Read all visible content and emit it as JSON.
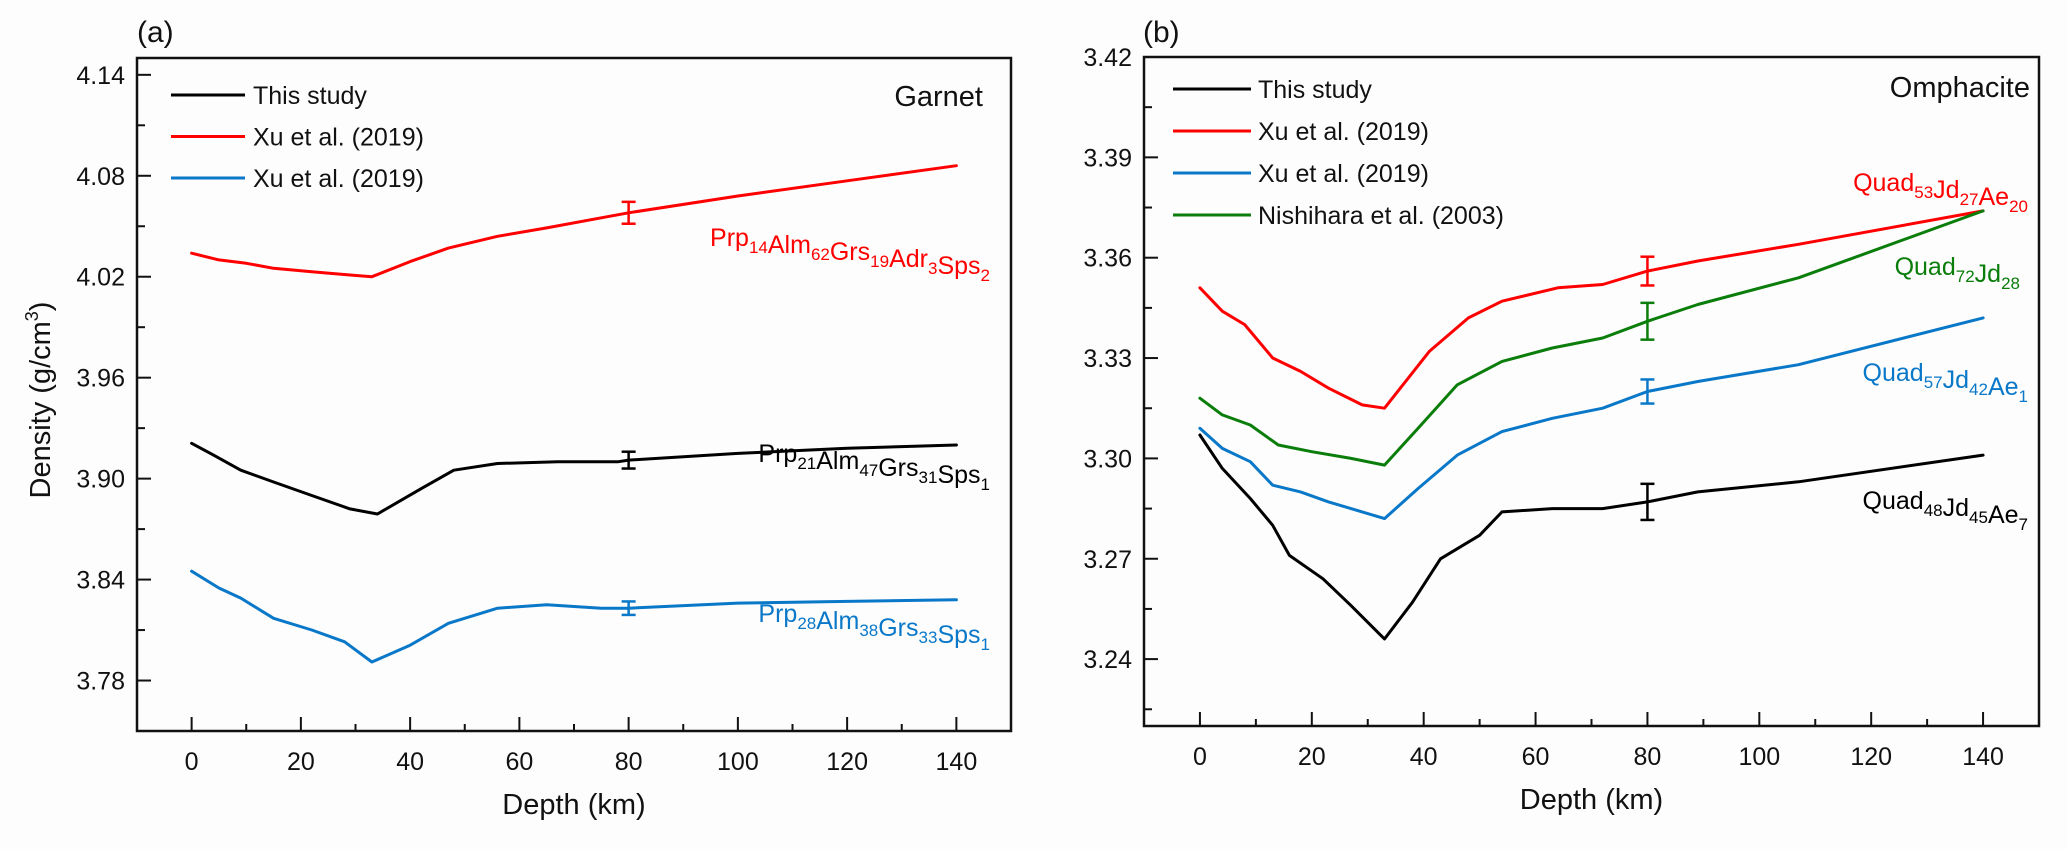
{
  "figure": {
    "ylabel": "Density (g/cm",
    "ylabel_sup": "3",
    "ylabel_close": ")"
  },
  "chart_data": [
    {
      "type": "line",
      "panel_label": "(a)",
      "title": "Garnet",
      "xlabel": "Depth (km)",
      "ylabel": "Density (g/cm³)",
      "xlim": [
        -10,
        150
      ],
      "ylim": [
        3.75,
        4.15
      ],
      "xticks": [
        0,
        20,
        40,
        60,
        80,
        100,
        120,
        140
      ],
      "yticks": [
        3.78,
        3.84,
        3.9,
        3.96,
        4.02,
        4.08,
        4.14
      ],
      "ytick_labels": [
        "3.78",
        "3.84",
        "3.90",
        "3.96",
        "4.02",
        "4.08",
        "4.14"
      ],
      "grid": false,
      "legend_position": "top-left",
      "legend": [
        {
          "label": "This study",
          "color": "#000000"
        },
        {
          "label": "Xu et al. (2019)",
          "color": "#ff0000"
        },
        {
          "label": "Xu et al. (2019)",
          "color": "#0a78c8"
        }
      ],
      "series": [
        {
          "name": "This study",
          "color": "#000000",
          "composition": [
            [
              "Prp",
              "21"
            ],
            [
              "Alm",
              "47"
            ],
            [
              "Grs",
              "31"
            ],
            [
              "Sps",
              "1"
            ]
          ],
          "x": [
            0,
            4,
            9,
            15,
            22,
            29,
            34,
            42,
            48,
            56,
            67,
            78,
            80,
            100,
            120,
            140
          ],
          "y": [
            3.921,
            3.914,
            3.905,
            3.898,
            3.89,
            3.882,
            3.879,
            3.894,
            3.905,
            3.909,
            3.91,
            3.91,
            3.911,
            3.915,
            3.918,
            3.92
          ],
          "error_bar": {
            "x": 80,
            "y": 3.911,
            "err": 0.005
          }
        },
        {
          "name": "Xu et al. (2019)",
          "color": "#ff0000",
          "composition": [
            [
              "Prp",
              "14"
            ],
            [
              "Alm",
              "62"
            ],
            [
              "Grs",
              "19"
            ],
            [
              "Adr",
              "3"
            ],
            [
              "Sps",
              "2"
            ]
          ],
          "x": [
            0,
            5,
            10,
            15,
            22,
            29,
            33,
            40,
            47,
            56,
            65,
            75,
            80,
            100,
            120,
            140
          ],
          "y": [
            4.034,
            4.03,
            4.028,
            4.025,
            4.023,
            4.021,
            4.02,
            4.029,
            4.037,
            4.044,
            4.049,
            4.055,
            4.058,
            4.068,
            4.077,
            4.086
          ],
          "error_bar": {
            "x": 80,
            "y": 4.058,
            "err": 0.0065
          }
        },
        {
          "name": "Xu et al. (2019)",
          "color": "#0a78c8",
          "composition": [
            [
              "Prp",
              "28"
            ],
            [
              "Alm",
              "38"
            ],
            [
              "Grs",
              "33"
            ],
            [
              "Sps",
              "1"
            ]
          ],
          "x": [
            0,
            5,
            9,
            15,
            22,
            28,
            33,
            40,
            47,
            56,
            65,
            75,
            80,
            100,
            120,
            140
          ],
          "y": [
            3.845,
            3.835,
            3.829,
            3.817,
            3.81,
            3.803,
            3.791,
            3.801,
            3.814,
            3.823,
            3.825,
            3.823,
            3.823,
            3.826,
            3.827,
            3.828
          ],
          "error_bar": {
            "x": 80,
            "y": 3.823,
            "err": 0.004
          }
        }
      ]
    },
    {
      "type": "line",
      "panel_label": "(b)",
      "title": "Omphacite",
      "xlabel": "Depth (km)",
      "ylabel": "",
      "xlim": [
        -10,
        150
      ],
      "ylim": [
        3.22,
        3.42
      ],
      "xticks": [
        0,
        20,
        40,
        60,
        80,
        100,
        120,
        140
      ],
      "yticks": [
        3.24,
        3.27,
        3.3,
        3.33,
        3.36,
        3.39,
        3.42
      ],
      "ytick_labels": [
        "3.24",
        "3.27",
        "3.30",
        "3.33",
        "3.36",
        "3.39",
        "3.42"
      ],
      "grid": false,
      "legend_position": "top-left",
      "legend": [
        {
          "label": "This study",
          "color": "#000000"
        },
        {
          "label": "Xu et al. (2019)",
          "color": "#ff0000"
        },
        {
          "label": "Xu et al. (2019)",
          "color": "#0a78c8"
        },
        {
          "label": "Nishihara et al. (2003)",
          "color": "#0a7d0a"
        }
      ],
      "series": [
        {
          "name": "This study",
          "color": "#000000",
          "composition": [
            [
              "Quad",
              "48"
            ],
            [
              "Jd",
              "45"
            ],
            [
              "Ae",
              "7"
            ]
          ],
          "x": [
            0,
            4,
            9,
            13,
            16,
            22,
            27,
            33,
            38,
            43,
            50,
            54,
            63,
            72,
            80,
            89,
            107,
            140
          ],
          "y": [
            3.307,
            3.297,
            3.288,
            3.28,
            3.271,
            3.264,
            3.256,
            3.246,
            3.257,
            3.27,
            3.277,
            3.284,
            3.285,
            3.285,
            3.287,
            3.29,
            3.293,
            3.301
          ],
          "error_bar": {
            "x": 80,
            "y": 3.287,
            "err": 0.0054
          }
        },
        {
          "name": "Xu et al. (2019)",
          "color": "#ff0000",
          "composition": [
            [
              "Quad",
              "53"
            ],
            [
              "Jd",
              "27"
            ],
            [
              "Ae",
              "20"
            ]
          ],
          "x": [
            0,
            4,
            8,
            13,
            18,
            23,
            29,
            33,
            41,
            48,
            54,
            64,
            72,
            80,
            89,
            107,
            140
          ],
          "y": [
            3.351,
            3.344,
            3.34,
            3.33,
            3.326,
            3.321,
            3.316,
            3.315,
            3.332,
            3.342,
            3.347,
            3.351,
            3.352,
            3.356,
            3.359,
            3.364,
            3.374
          ],
          "error_bar": {
            "x": 80,
            "y": 3.356,
            "err": 0.0043
          }
        },
        {
          "name": "Xu et al. (2019)",
          "color": "#0a78c8",
          "composition": [
            [
              "Quad",
              "57"
            ],
            [
              "Jd",
              "42"
            ],
            [
              "Ae",
              "1"
            ]
          ],
          "x": [
            0,
            4,
            9,
            13,
            18,
            23,
            29,
            33,
            39,
            46,
            54,
            63,
            72,
            80,
            89,
            107,
            140
          ],
          "y": [
            3.309,
            3.303,
            3.299,
            3.292,
            3.29,
            3.287,
            3.284,
            3.282,
            3.291,
            3.301,
            3.308,
            3.312,
            3.315,
            3.32,
            3.323,
            3.328,
            3.342
          ],
          "error_bar": {
            "x": 80,
            "y": 3.32,
            "err": 0.0036
          }
        },
        {
          "name": "Nishihara et al. (2003)",
          "color": "#0a7d0a",
          "composition": [
            [
              "Quad",
              "72"
            ],
            [
              "Jd",
              "28"
            ]
          ],
          "x": [
            0,
            4,
            9,
            14,
            20,
            27,
            33,
            39,
            46,
            54,
            63,
            72,
            80,
            89,
            107,
            140
          ],
          "y": [
            3.318,
            3.313,
            3.31,
            3.304,
            3.302,
            3.3,
            3.298,
            3.309,
            3.322,
            3.329,
            3.333,
            3.336,
            3.341,
            3.346,
            3.354,
            3.374
          ],
          "error_bar": {
            "x": 80,
            "y": 3.341,
            "err": 0.0055
          }
        }
      ]
    }
  ]
}
